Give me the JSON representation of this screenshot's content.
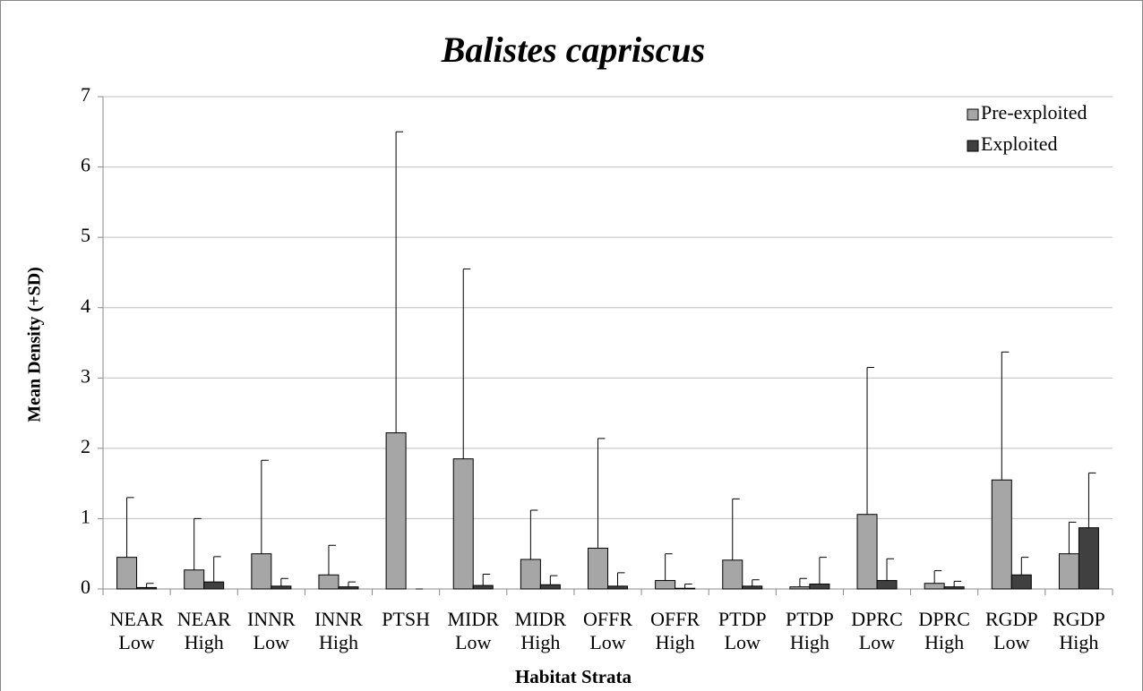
{
  "chart_data": {
    "type": "bar",
    "title": "Balistes capriscus",
    "x_label": "Habitat Strata",
    "y_label": "Mean Density (+SD)",
    "categories": [
      [
        "NEAR",
        "Low"
      ],
      [
        "NEAR",
        "High"
      ],
      [
        "INNR",
        "Low"
      ],
      [
        "INNR",
        "High"
      ],
      [
        "PTSH"
      ],
      [
        "MIDR",
        "Low"
      ],
      [
        "MIDR",
        "High"
      ],
      [
        "OFFR",
        "Low"
      ],
      [
        "OFFR",
        "High"
      ],
      [
        "PTDP",
        "Low"
      ],
      [
        "PTDP",
        "High"
      ],
      [
        "DPRC",
        "Low"
      ],
      [
        "DPRC",
        "High"
      ],
      [
        "RGDP",
        "Low"
      ],
      [
        "RGDP",
        "High"
      ]
    ],
    "series": [
      {
        "name": "Pre-exploited",
        "color": "#a6a6a6",
        "values": [
          0.45,
          0.27,
          0.5,
          0.2,
          2.22,
          1.85,
          0.42,
          0.58,
          0.12,
          0.41,
          0.03,
          1.06,
          0.08,
          1.55,
          0.5
        ],
        "errors": [
          0.85,
          0.73,
          1.33,
          0.42,
          4.28,
          2.7,
          0.7,
          1.56,
          0.38,
          0.87,
          0.12,
          2.09,
          0.18,
          1.82,
          0.45
        ]
      },
      {
        "name": "Exploited",
        "color": "#404040",
        "values": [
          0.02,
          0.1,
          0.04,
          0.03,
          0.0,
          0.05,
          0.06,
          0.04,
          0.01,
          0.04,
          0.07,
          0.12,
          0.03,
          0.2,
          0.87
        ],
        "errors": [
          0.06,
          0.36,
          0.11,
          0.07,
          0.0,
          0.16,
          0.13,
          0.19,
          0.06,
          0.09,
          0.38,
          0.31,
          0.08,
          0.25,
          0.78
        ]
      }
    ],
    "ylim": [
      0,
      7
    ],
    "yticks": [
      0,
      1,
      2,
      3,
      4,
      5,
      6,
      7
    ],
    "grid": true,
    "legend": "upper right"
  }
}
